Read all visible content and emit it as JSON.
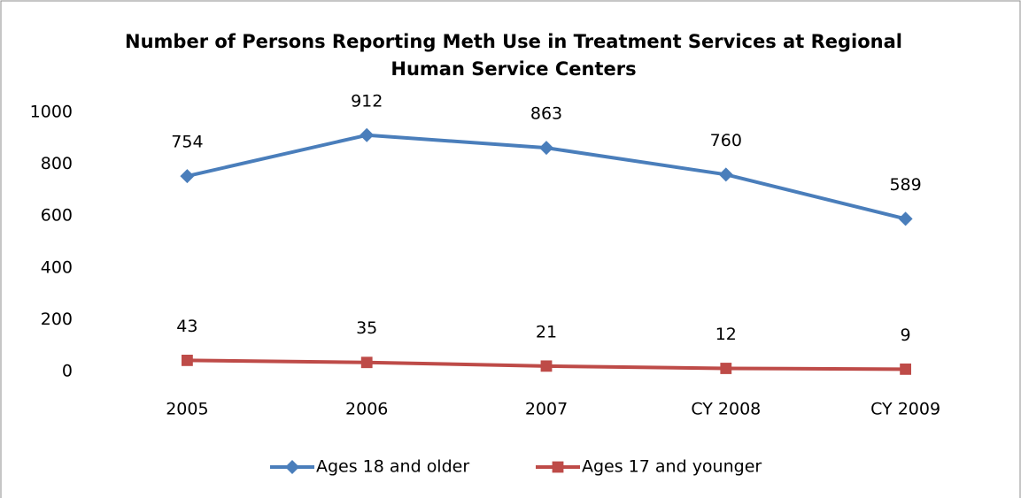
{
  "chart_data": {
    "type": "line",
    "title": "Number of Persons Reporting Meth Use in Treatment Services at Regional Human Service Centers",
    "categories": [
      "2005",
      "2006",
      "2007",
      "CY 2008",
      "CY 2009"
    ],
    "series": [
      {
        "name": "Ages 18 and older",
        "color": "#4a7ebb",
        "marker": "diamond",
        "values": [
          754,
          912,
          863,
          760,
          589
        ]
      },
      {
        "name": "Ages 17 and younger",
        "color": "#be4b48",
        "marker": "square",
        "values": [
          43,
          35,
          21,
          12,
          9
        ]
      }
    ],
    "ylim": [
      0,
      1000
    ],
    "yticks": [
      0,
      200,
      400,
      600,
      800,
      1000
    ],
    "grid": false,
    "legend": "bottom"
  }
}
